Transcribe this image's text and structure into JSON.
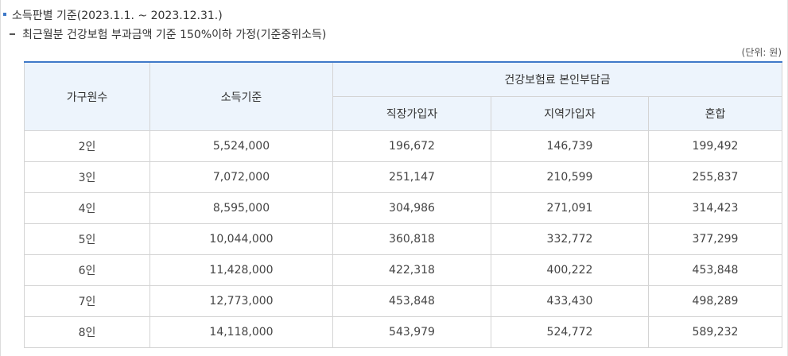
{
  "section": {
    "title": "소득판별 기준(2023.1.1. ~ 2023.12.31.)",
    "subtitle": "최근월분 건강보험 부과금액 기준 150%이하 가정(기준중위소득)",
    "unit": "(단위: 원)"
  },
  "table": {
    "headers": {
      "household": "가구원수",
      "income": "소득기준",
      "premium_group": "건강보험료 본인부담금",
      "employee": "직장가입자",
      "regional": "지역가입자",
      "mixed": "혼합"
    },
    "rows": [
      [
        "2인",
        "5,524,000",
        "196,672",
        "146,739",
        "199,492"
      ],
      [
        "3인",
        "7,072,000",
        "251,147",
        "210,599",
        "255,837"
      ],
      [
        "4인",
        "8,595,000",
        "304,986",
        "271,091",
        "314,423"
      ],
      [
        "5인",
        "10,044,000",
        "360,818",
        "332,772",
        "377,299"
      ],
      [
        "6인",
        "11,428,000",
        "422,318",
        "400,222",
        "453,848"
      ],
      [
        "7인",
        "12,773,000",
        "453,848",
        "433,430",
        "498,289"
      ],
      [
        "8인",
        "14,118,000",
        "543,979",
        "524,772",
        "589,232"
      ]
    ]
  },
  "colors": {
    "accent": "#3f79c8",
    "header_bg": "#edf4fc",
    "border": "#d4d4d4"
  }
}
